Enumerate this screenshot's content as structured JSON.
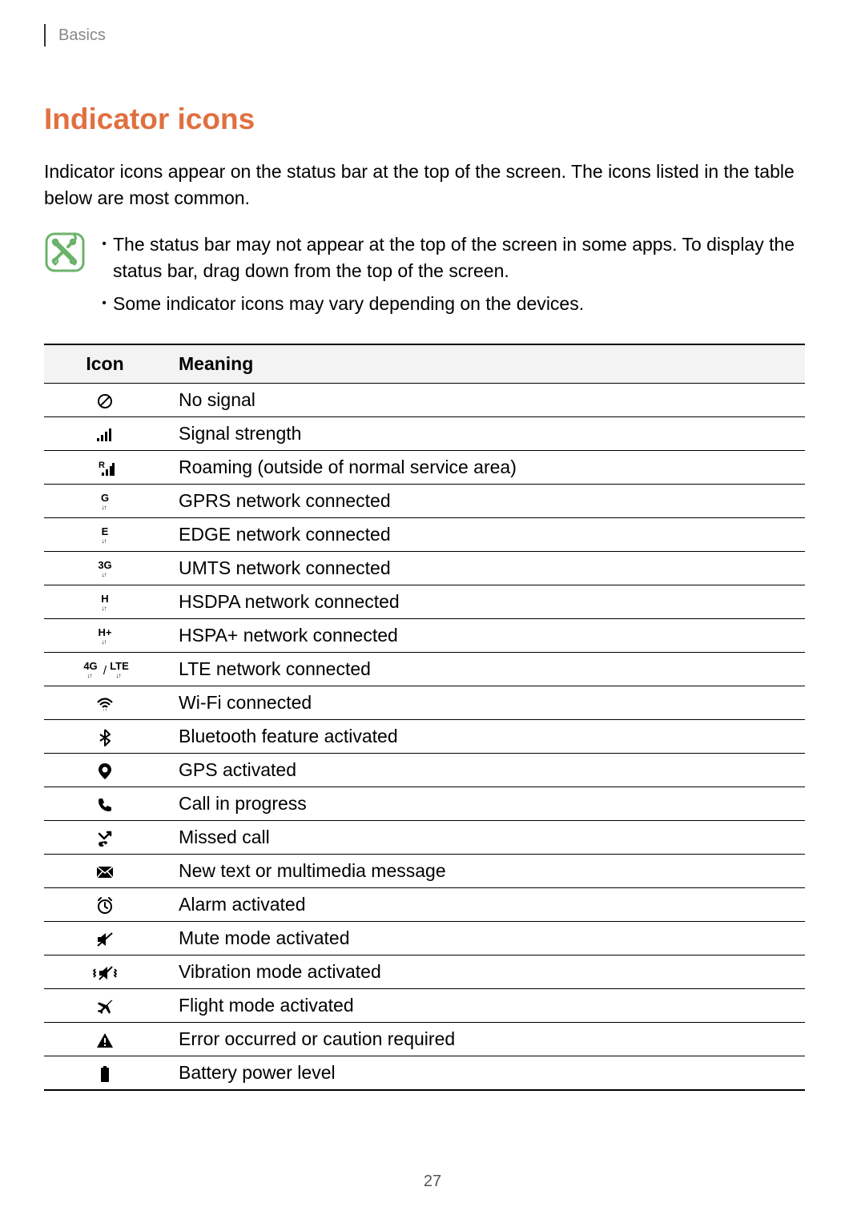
{
  "breadcrumb": "Basics",
  "section_title": "Indicator icons",
  "intro": "Indicator icons appear on the status bar at the top of the screen. The icons listed in the table below are most common.",
  "notes": [
    "The status bar may not appear at the top of the screen in some apps. To display the status bar, drag down from the top of the screen.",
    "Some indicator icons may vary depending on the devices."
  ],
  "table": {
    "columns": [
      "Icon",
      "Meaning"
    ],
    "rows": [
      {
        "icon": "no-signal",
        "meaning": "No signal"
      },
      {
        "icon": "signal",
        "meaning": "Signal strength"
      },
      {
        "icon": "roaming",
        "meaning": "Roaming (outside of normal service area)"
      },
      {
        "icon": "gprs",
        "text_label": "G",
        "meaning": "GPRS network connected"
      },
      {
        "icon": "edge",
        "text_label": "E",
        "meaning": "EDGE network connected"
      },
      {
        "icon": "umts",
        "text_label": "3G",
        "meaning": "UMTS network connected"
      },
      {
        "icon": "hsdpa",
        "text_label": "H",
        "meaning": "HSDPA network connected"
      },
      {
        "icon": "hspa-plus",
        "text_label": "H+",
        "meaning": "HSPA+ network connected"
      },
      {
        "icon": "lte",
        "text_label_a": "4G",
        "text_label_b": "LTE",
        "meaning": "LTE network connected"
      },
      {
        "icon": "wifi",
        "meaning": "Wi-Fi connected"
      },
      {
        "icon": "bluetooth",
        "meaning": "Bluetooth feature activated"
      },
      {
        "icon": "gps",
        "meaning": "GPS activated"
      },
      {
        "icon": "call",
        "meaning": "Call in progress"
      },
      {
        "icon": "missed-call",
        "meaning": "Missed call"
      },
      {
        "icon": "message",
        "meaning": "New text or multimedia message"
      },
      {
        "icon": "alarm",
        "meaning": "Alarm activated"
      },
      {
        "icon": "mute",
        "meaning": "Mute mode activated"
      },
      {
        "icon": "vibration",
        "meaning": "Vibration mode activated"
      },
      {
        "icon": "flight",
        "meaning": "Flight mode activated"
      },
      {
        "icon": "error",
        "meaning": "Error occurred or caution required"
      },
      {
        "icon": "battery",
        "meaning": "Battery power level"
      }
    ]
  },
  "page_number": "27",
  "colors": {
    "title": "#e07040",
    "text": "#000000",
    "breadcrumb": "#888888",
    "note_icon_stroke": "#6bb36b",
    "table_border": "#000000",
    "header_bg": "#f3f3f3"
  }
}
